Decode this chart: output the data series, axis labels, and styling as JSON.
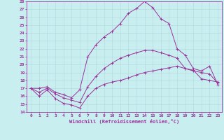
{
  "xlabel": "Windchill (Refroidissement éolien,°C)",
  "xlim": [
    -0.5,
    23.5
  ],
  "ylim": [
    14,
    28
  ],
  "xticks": [
    0,
    1,
    2,
    3,
    4,
    5,
    6,
    7,
    8,
    9,
    10,
    11,
    12,
    13,
    14,
    15,
    16,
    17,
    18,
    19,
    20,
    21,
    22,
    23
  ],
  "yticks": [
    14,
    15,
    16,
    17,
    18,
    19,
    20,
    21,
    22,
    23,
    24,
    25,
    26,
    27,
    28
  ],
  "bg_color": "#c8eef0",
  "line_color": "#993399",
  "grid_color": "#b0d8dc",
  "lines": [
    {
      "x": [
        0,
        1,
        2,
        3,
        4,
        5,
        6,
        7,
        8,
        9,
        10,
        11,
        12,
        13,
        14,
        15,
        16,
        17,
        18,
        19,
        20,
        21,
        22,
        23
      ],
      "y": [
        17.0,
        16.0,
        16.8,
        15.7,
        15.1,
        14.9,
        14.5,
        16.0,
        17.0,
        17.5,
        17.8,
        18.0,
        18.3,
        18.7,
        19.0,
        19.2,
        19.4,
        19.6,
        19.8,
        19.5,
        19.3,
        18.2,
        18.0,
        17.8
      ]
    },
    {
      "x": [
        0,
        1,
        2,
        3,
        4,
        5,
        6,
        7,
        8,
        9,
        10,
        11,
        12,
        13,
        14,
        15,
        16,
        17,
        18,
        19,
        20,
        21,
        22,
        23
      ],
      "y": [
        17.0,
        16.5,
        17.0,
        16.3,
        15.8,
        15.5,
        15.2,
        17.2,
        18.5,
        19.5,
        20.2,
        20.8,
        21.2,
        21.5,
        21.8,
        21.8,
        21.5,
        21.2,
        20.8,
        19.5,
        19.2,
        19.0,
        18.8,
        17.7
      ]
    },
    {
      "x": [
        0,
        1,
        2,
        3,
        4,
        5,
        6,
        7,
        8,
        9,
        10,
        11,
        12,
        13,
        14,
        15,
        16,
        17,
        18,
        19,
        20,
        21,
        22,
        23
      ],
      "y": [
        17.0,
        17.0,
        17.2,
        16.5,
        16.2,
        15.8,
        16.8,
        21.0,
        22.5,
        23.5,
        24.2,
        25.2,
        26.5,
        27.1,
        28.0,
        27.2,
        25.8,
        25.2,
        22.0,
        21.2,
        19.5,
        19.2,
        19.8,
        17.5
      ]
    }
  ]
}
